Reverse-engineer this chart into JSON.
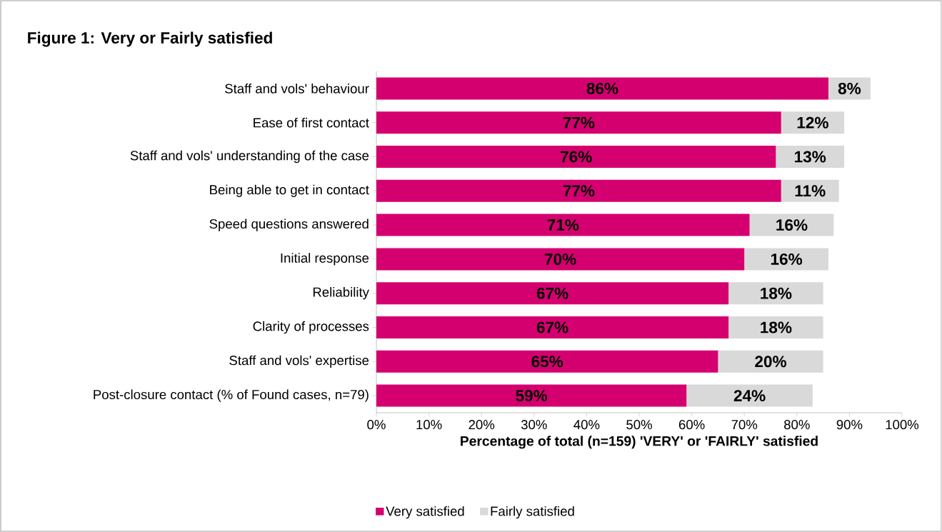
{
  "chart_data": {
    "type": "bar",
    "orientation": "horizontal",
    "stacked": true,
    "title": "Figure 1: Very or Fairly satisfied",
    "xlabel": "Percentage of total (n=159)  'VERY'  or 'FAIRLY'  satisfied",
    "categories": [
      "Staff and vols' behaviour",
      "Ease of first contact",
      "Staff and vols' understanding of the case",
      "Being able to get in contact",
      "Speed questions answered",
      "Initial response",
      "Reliability",
      "Clarity of processes",
      "Staff and vols' expertise",
      "Post-closure contact (% of Found cases, n=79)"
    ],
    "series": [
      {
        "name": "Very satisfied",
        "color": "#d5006f",
        "values": [
          86,
          77,
          76,
          77,
          71,
          70,
          67,
          67,
          65,
          59
        ],
        "value_labels": [
          "86%",
          "77%",
          "76%",
          "77%",
          "71%",
          "70%",
          "67%",
          "67%",
          "65%",
          "59%"
        ]
      },
      {
        "name": "Fairly satisfied",
        "color": "#d9d9d9",
        "values": [
          8,
          12,
          13,
          11,
          16,
          16,
          18,
          18,
          20,
          24
        ],
        "value_labels": [
          "8%",
          "12%",
          "13%",
          "11%",
          "16%",
          "16%",
          "18%",
          "18%",
          "20%",
          "24%"
        ]
      }
    ],
    "xlim": [
      0,
      100
    ],
    "xticks": [
      {
        "value": 0,
        "label": "0%"
      },
      {
        "value": 10,
        "label": "10%"
      },
      {
        "value": 20,
        "label": "20%"
      },
      {
        "value": 30,
        "label": "30%"
      },
      {
        "value": 40,
        "label": "40%"
      },
      {
        "value": 50,
        "label": "50%"
      },
      {
        "value": 60,
        "label": "60%"
      },
      {
        "value": 70,
        "label": "70%"
      },
      {
        "value": 80,
        "label": "80%"
      },
      {
        "value": 90,
        "label": "90%"
      },
      {
        "value": 100,
        "label": "100%"
      }
    ],
    "legend": "bottom",
    "grid": false
  }
}
